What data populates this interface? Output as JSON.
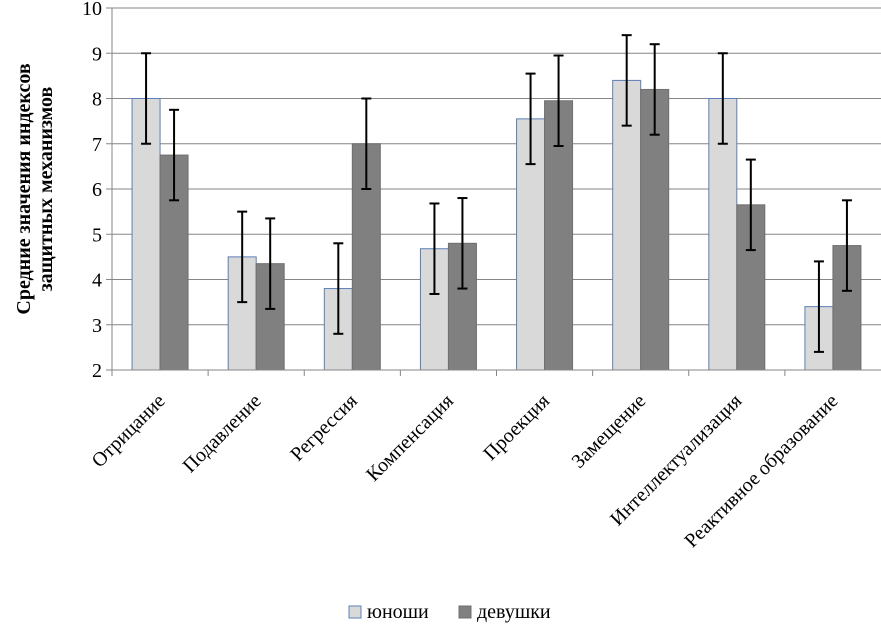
{
  "chart_data": {
    "type": "bar",
    "title": "",
    "xlabel": "",
    "ylabel": "Средние значения индексов защитных механизмов",
    "ylabel_lines": [
      "Средние значения индексов",
      "защитных механизмов"
    ],
    "ylim": [
      2,
      10
    ],
    "yticks": [
      2,
      3,
      4,
      5,
      6,
      7,
      8,
      9,
      10
    ],
    "grid": true,
    "legend_position": "bottom",
    "categories": [
      "Отрицание",
      "Подавление",
      "Регрессия",
      "Компенсация",
      "Проекция",
      "Замещение",
      "Интеллектуализация",
      "Реактивное образование"
    ],
    "series": [
      {
        "name": "юноши",
        "color": "#d9d9d9",
        "values": [
          8.0,
          4.5,
          3.8,
          4.68,
          7.55,
          8.4,
          8.0,
          3.4
        ],
        "error": [
          1.0,
          1.0,
          1.0,
          1.0,
          1.0,
          1.0,
          1.0,
          1.0
        ]
      },
      {
        "name": "девушки",
        "color": "#808080",
        "values": [
          6.75,
          4.35,
          7.0,
          4.8,
          7.95,
          8.2,
          5.65,
          4.75
        ],
        "error": [
          1.0,
          1.0,
          1.0,
          1.0,
          1.0,
          1.0,
          1.0,
          1.0
        ]
      }
    ]
  }
}
